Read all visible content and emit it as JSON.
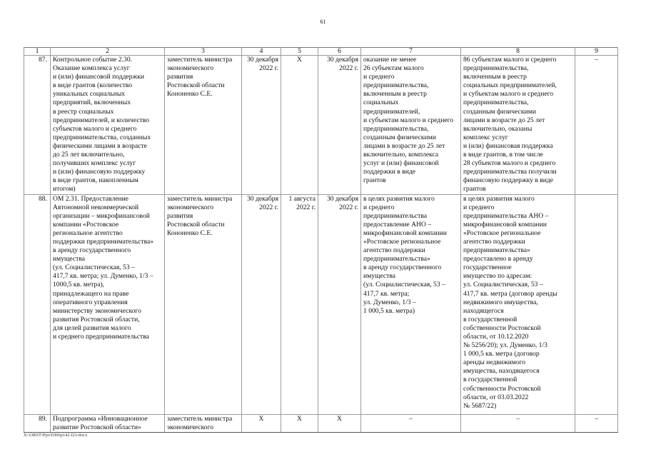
{
  "page_number": "61",
  "table": {
    "headers": [
      "1",
      "2",
      "3",
      "4",
      "5",
      "6",
      "7",
      "8",
      "9"
    ],
    "rows": [
      {
        "num": "87.",
        "name": "Контрольное событие 2.30.\nОказание комплекса услуг\nи (или) финансовой поддержки\nв виде грантов (количество\nуникальных социальных\nпредприятий, включенных\nв реестр социальных\nпредпринимателей, и количество\nсубъектов малого и среднего\nпредпринимательства, созданных\nфизическими лицами в возрасте\nдо 25 лет включительно,\nполучивших комплекс услуг\nи (или) финансовую поддержку\nв виде грантов, накопленным\nитогом)",
        "responsible": "заместитель министра\nэкономического\nразвития\nРостовской области\nКононенко С.Е.",
        "planned_date": "30 декабря\n2022 г.",
        "actual_start": "Х",
        "actual_end": "30 декабря\n2022 г.",
        "planned_result": "оказание не менее\n26 субъектам малого\nи среднего\nпредпринимательства,\nвключенным в реестр\nсоциальных\nпредпринимателей,\nи субъектам малого и среднего\nпредпринимательства,\nсозданным физическими\nлицами в возрасте до 25 лет\nвключительно, комплекса\nуслуг и (или) финансовой\nподдержки в виде\nгрантов",
        "actual_result": "86 субъектам малого и среднего\nпредпринимательства,\nвключенным в реестр\nсоциальных предпринимателей,\nи субъектам малого и среднего\nпредпринимательства,\nсозданным физическими\nлицами в возрасте до 25 лет\nвключительно, оказаны\nкомплекс услуг\nи (или) финансовая поддержка\nв виде грантов, в том числе\n28 субъектов малого и среднего\nпредпринимательства получили\nфинансовую поддержку в виде\nгрантов",
        "reasons": "–"
      },
      {
        "num": "88.",
        "name": "ОМ 2.31. Предоставление\nАвтономной некоммерческой\nорганизации – микрофинансовой\nкомпании «Ростовское\nрегиональное агентство\nподдержки предпринимательства»\nв аренду государственного\nимущества\n(ул. Социалистическая, 53 –\n417,7 кв. метра; ул. Думенко, 1/3 –\n1000,5 кв. метра),\nпринадлежащего на праве\nоперативного управления\nминистерству экономического\nразвития Ростовской области,\nдля целей развития малого\nи среднего предпринимательства",
        "responsible": "заместитель министра\nэкономического\nразвития\nРостовской области\nКононенко С.Е.",
        "planned_date": "30 декабря\n2022 г.",
        "actual_start": "1 августа\n2022 г.",
        "actual_end": "30 декабря\n2022 г.",
        "planned_result": "в целях развития малого\nи среднего\nпредпринимательства\nпредоставление АНО –\nмикрофинансовой компании\n«Ростовское региональное\nагентство поддержки\nпредпринимательства»\nв аренду государственного\nимущества\n(ул. Социалистическая, 53 –\n417,7 кв. метра;\nул. Думенко, 1/3 –\n1 000,5 кв. метра)",
        "actual_result": "в целях развития малого\nи среднего\nпредпринимательства АНО –\nмикрофинансовой компании\n«Ростовское региональное\nагентство поддержки\nпредпринимательства»\nпредоставлено в аренду\nгосударственное\nимущество по адресам:\nул. Социалистическая, 53 –\n417,7 кв. метра (договор аренды\nнедвижимого имущества,\nнаходящегося\nв государственной\nсобственности Ростовской\nобласти, от 10.12.2020\n№ 5256/20); ул. Думенко, 1/3\n1 000,5 кв. метра (договор\nаренды недвижимого\nимущества, находящегося\nв государственной\nсобственности Ростовской\nобласти, от 03.03.2022\n№ 5687/22)",
        "reasons": ""
      },
      {
        "num": "89.",
        "name": "Подпрограмма «Инновационное\nразвитие Ростовской области»",
        "responsible": "заместитель министра\nэкономического",
        "planned_date": "Х",
        "actual_start": "Х",
        "actual_end": "Х",
        "planned_result": "–",
        "actual_result": "–",
        "reasons": "–"
      }
    ]
  },
  "footer_path": "X:\\ORST\\Ppo\\0306p142.f23.docx"
}
